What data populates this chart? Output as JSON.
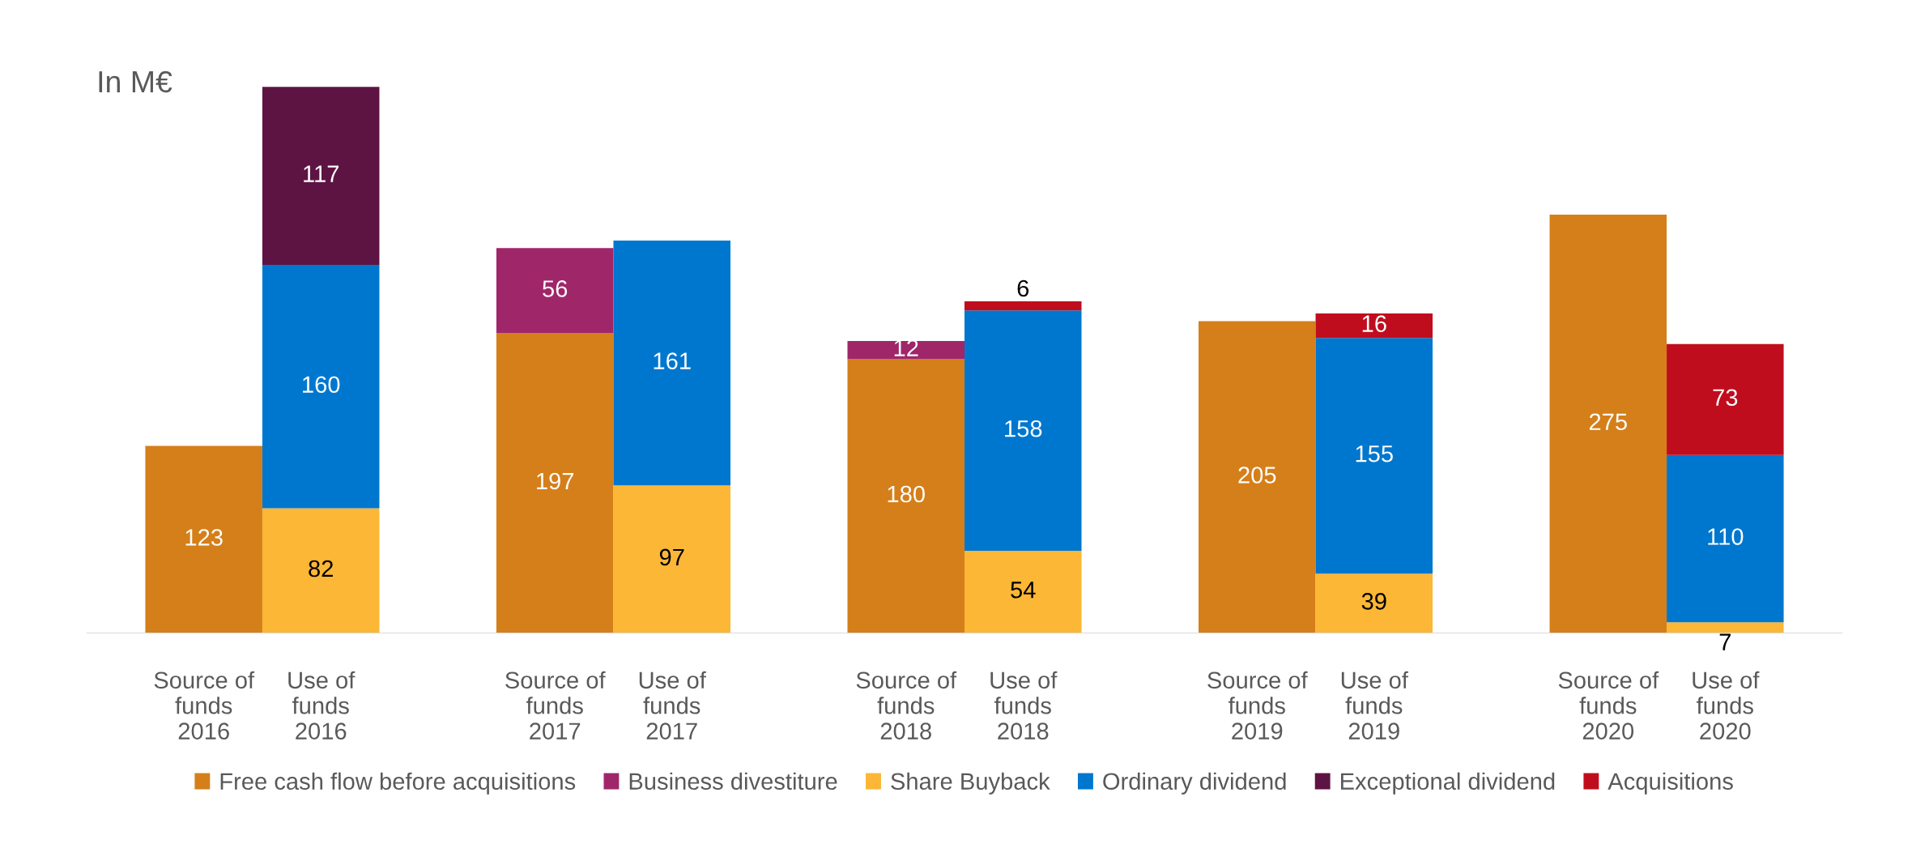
{
  "chart_data": {
    "type": "bar",
    "stacked": true,
    "data_labels": true,
    "legend": "bottom",
    "grid": false,
    "title": "In M€",
    "categories": [
      "Source of\nfunds\n2016",
      "Use of\nfunds\n2016",
      null,
      "Source of\nfunds\n2017",
      "Use of\nfunds\n2017",
      null,
      "Source of\nfunds\n2018",
      "Use of\nfunds\n2018",
      null,
      "Source of\nfunds\n2019",
      "Use of\nfunds\n2019",
      null,
      "Source of\nfunds\n2020",
      "Use of\nfunds\n2020"
    ],
    "series": [
      {
        "name": "Free cash flow before acquisitions",
        "color": "#d57f1a",
        "values": [
          123,
          null,
          null,
          197,
          null,
          null,
          180,
          null,
          null,
          205,
          null,
          null,
          275,
          null
        ]
      },
      {
        "name": "Business divestiture",
        "color": "#a0266a",
        "values": [
          null,
          null,
          null,
          56,
          null,
          null,
          12,
          null,
          null,
          null,
          null,
          null,
          null,
          null
        ]
      },
      {
        "name": "Share Buyback",
        "color": "#fbb735",
        "values": [
          null,
          82,
          null,
          null,
          97,
          null,
          null,
          54,
          null,
          null,
          39,
          null,
          null,
          7
        ]
      },
      {
        "name": "Ordinary dividend",
        "color": "#0077cf",
        "values": [
          null,
          160,
          null,
          null,
          161,
          null,
          null,
          158,
          null,
          null,
          155,
          null,
          null,
          110
        ]
      },
      {
        "name": "Exceptional dividend",
        "color": "#5e1443",
        "values": [
          null,
          117,
          null,
          null,
          null,
          null,
          null,
          null,
          null,
          null,
          null,
          null,
          null,
          null
        ]
      },
      {
        "name": "Acquisitions",
        "color": "#c00d1e",
        "values": [
          null,
          null,
          null,
          null,
          null,
          null,
          null,
          6,
          null,
          null,
          16,
          null,
          null,
          73
        ]
      }
    ]
  }
}
